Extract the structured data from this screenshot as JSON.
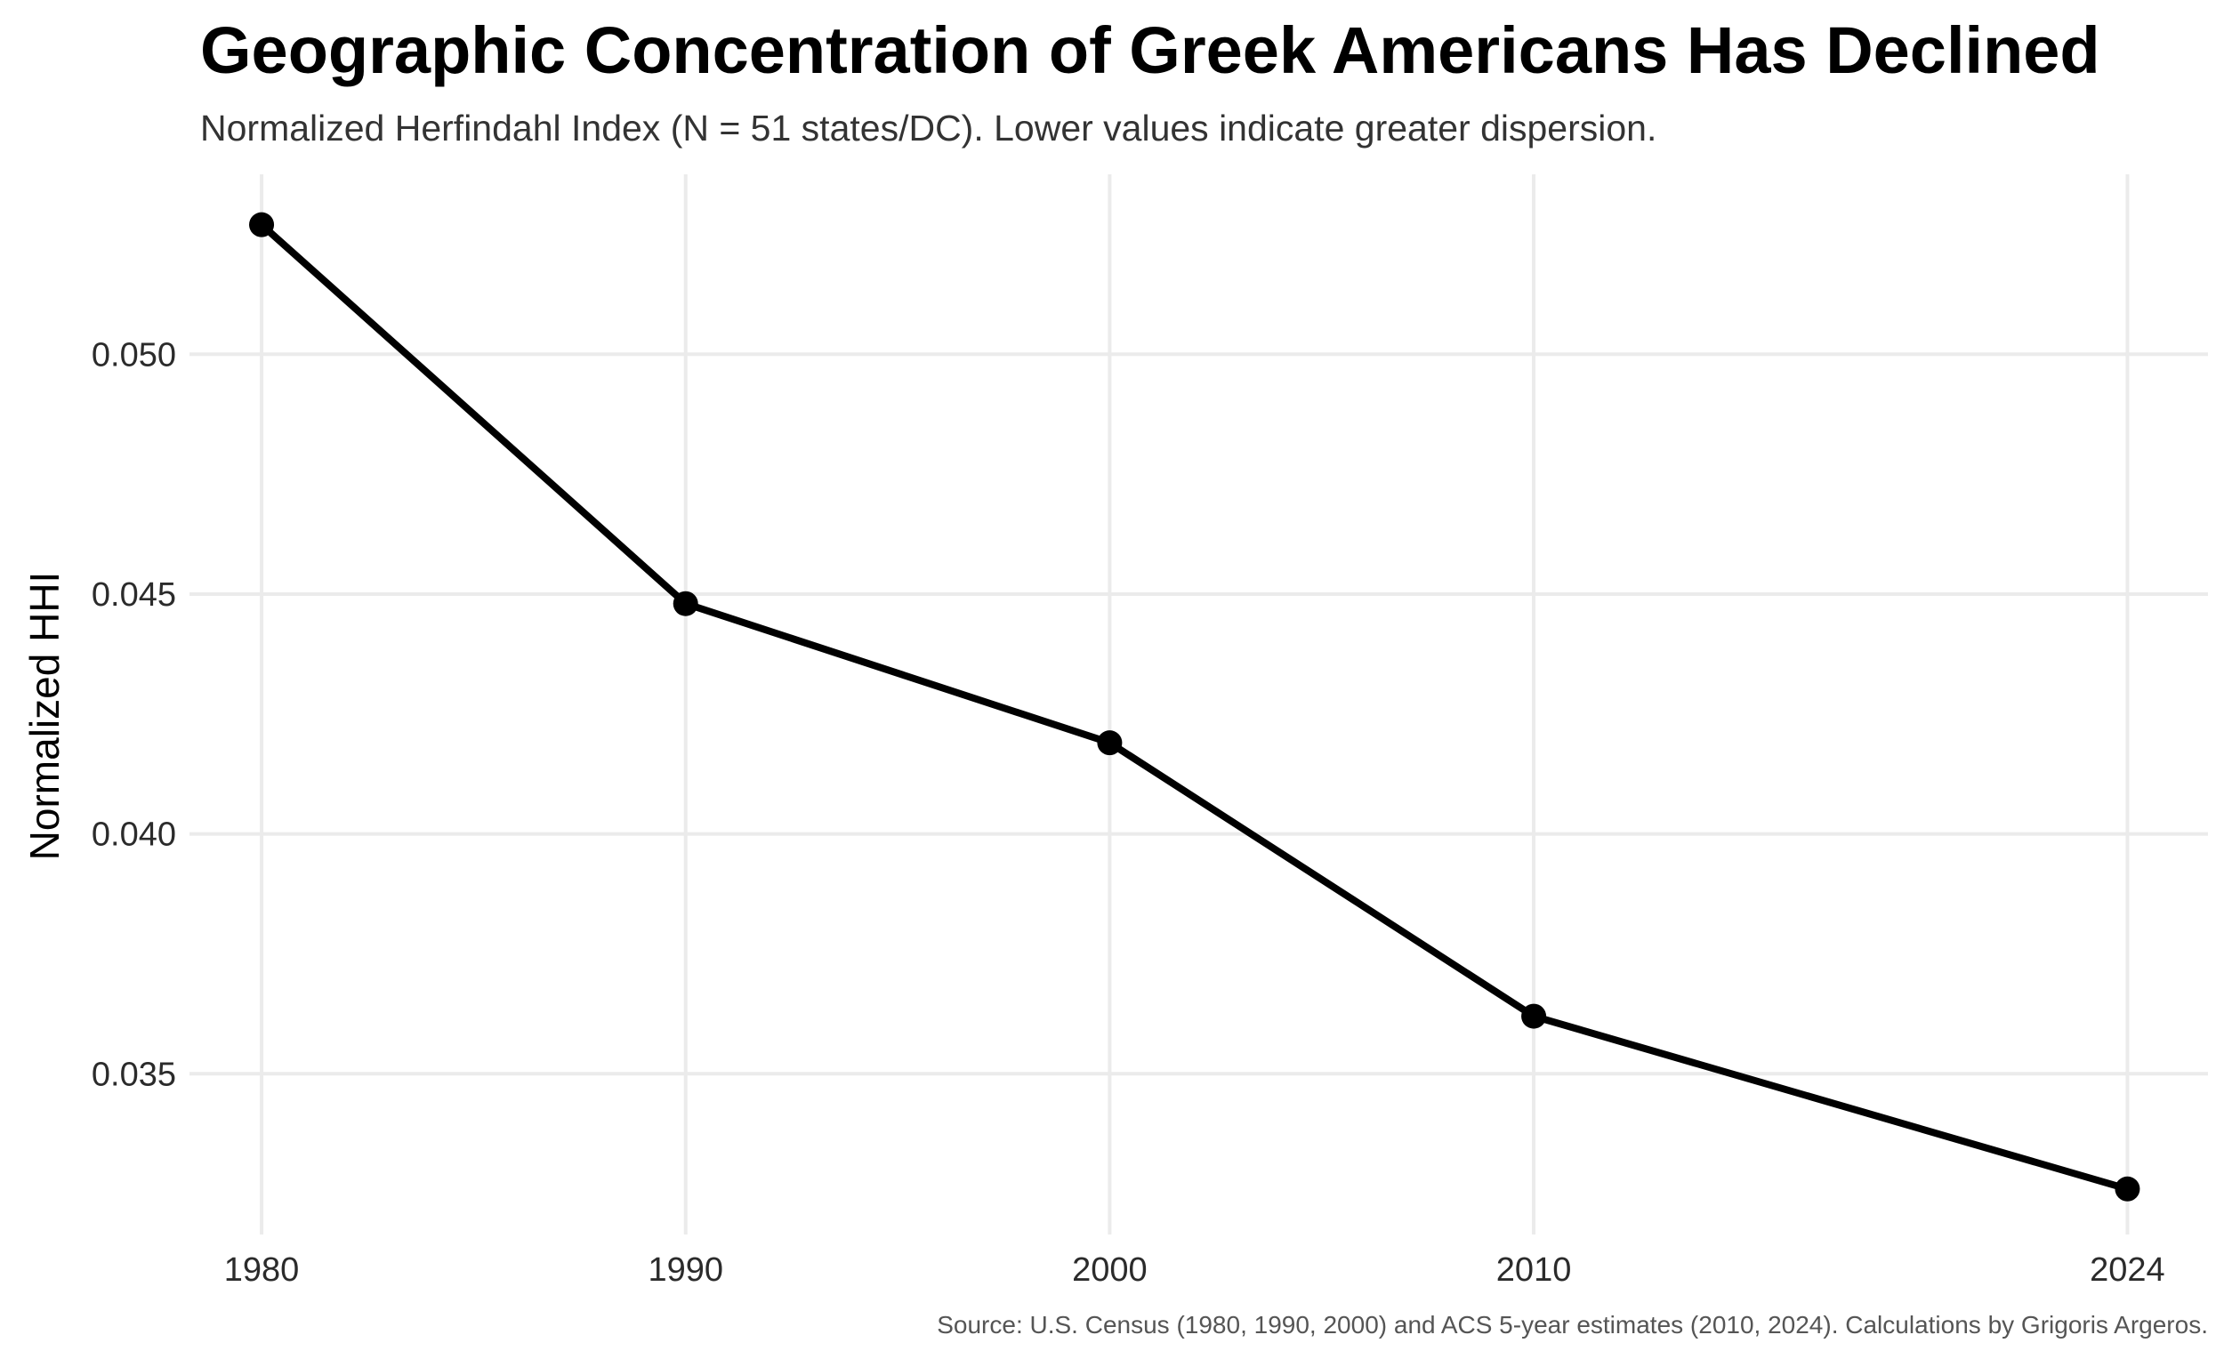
{
  "chart_data": {
    "type": "line",
    "title": "Geographic Concentration of Greek Americans Has Declined",
    "subtitle": "Normalized Herfindahl Index (N = 51 states/DC). Lower values indicate greater dispersion.",
    "caption": "Source: U.S. Census (1980, 1990, 2000) and ACS 5-year estimates (2010, 2024). Calculations by Grigoris Argeros.",
    "xlabel": "",
    "ylabel": "Normalized HHI",
    "x": [
      1980,
      1990,
      2000,
      2010,
      2024
    ],
    "x_tick_labels": [
      "1980",
      "1990",
      "2000",
      "2010",
      "2024"
    ],
    "y": [
      0.0527,
      0.0448,
      0.0419,
      0.0362,
      0.0326
    ],
    "y_ticks": [
      0.035,
      0.04,
      0.045,
      0.05
    ],
    "y_tick_labels": [
      "0.035",
      "0.040",
      "0.045",
      "0.050"
    ],
    "xlim": [
      1978.3,
      2025.9
    ],
    "ylim": [
      0.03165,
      0.05375
    ],
    "grid": true,
    "line_color": "#000000",
    "grid_color": "#ebebeb"
  }
}
